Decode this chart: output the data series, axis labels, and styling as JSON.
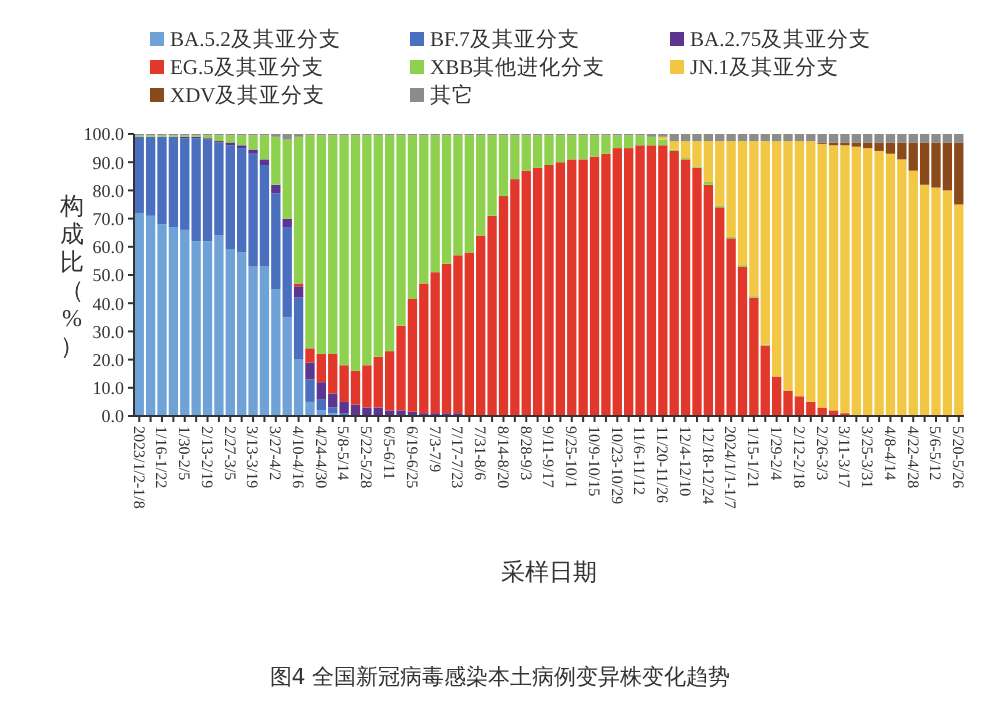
{
  "chart_data": {
    "type": "bar",
    "stacked": true,
    "xlabel": "采样日期",
    "ylabel": "构成比（%）",
    "legend": "top",
    "ylim": [
      0,
      100
    ],
    "yticks": [
      {
        "value": 0,
        "label": "0.0"
      },
      {
        "value": 10,
        "label": "10.0"
      },
      {
        "value": 20,
        "label": "20.0"
      },
      {
        "value": 30,
        "label": "30.0"
      },
      {
        "value": 40,
        "label": "40.0"
      },
      {
        "value": 50,
        "label": "50.0"
      },
      {
        "value": 60,
        "label": "60.0"
      },
      {
        "value": 70,
        "label": "70.0"
      },
      {
        "value": 80,
        "label": "80.0"
      },
      {
        "value": 90,
        "label": "90.0"
      },
      {
        "value": 100,
        "label": "100.0"
      }
    ],
    "categories": [
      "2023/1/2-1/8",
      null,
      "1/16-1/22",
      null,
      "1/30-2/5",
      null,
      "2/13-2/19",
      null,
      "2/27-3/5",
      null,
      "3/13-3/19",
      null,
      "3/27-4/2",
      null,
      "4/10-4/16",
      null,
      "4/24-4/30",
      null,
      "5/8-5/14",
      null,
      "5/22-5/28",
      null,
      "6/5-6/11",
      null,
      "6/19-6/25",
      null,
      "7/3-7/9",
      null,
      "7/17-7/23",
      null,
      "7/31-8/6",
      null,
      "8/14-8/20",
      null,
      "8/28-9/3",
      null,
      "9/11-9/17",
      null,
      "9/25-10/1",
      null,
      "10/9-10/15",
      null,
      "10/23-10/29",
      null,
      "11/6-11/12",
      null,
      "11/20-11/26",
      null,
      "12/4-12/10",
      null,
      "12/18-12/24",
      null,
      "2024/1/1-1/7",
      null,
      "1/15-1/21",
      null,
      "1/29-2/4",
      null,
      "2/12-2/18",
      null,
      "2/26-3/3",
      null,
      "3/11-3/17",
      null,
      "3/25-3/31",
      null,
      "4/8-4/14",
      null,
      "4/22-4/28",
      null,
      "5/6-5/12",
      null,
      "5/20-5/26"
    ],
    "series": [
      {
        "name": "BA.5.2及其亚分支",
        "color": "#6fa3d8",
        "values": [
          72,
          71,
          68,
          67,
          66,
          62,
          62,
          64,
          59,
          58,
          53,
          53,
          45,
          35,
          20,
          5,
          2,
          1,
          0,
          0,
          0,
          0,
          0,
          0,
          0,
          0,
          0,
          0,
          0,
          0,
          0,
          0,
          0,
          0,
          0,
          0,
          0,
          0,
          0,
          0,
          0,
          0,
          0,
          0,
          0,
          0,
          0,
          0,
          0,
          0,
          0,
          0,
          0,
          0,
          0,
          0,
          0,
          0,
          0,
          0,
          0,
          0,
          0,
          0,
          0,
          0,
          0,
          0,
          0,
          0,
          0,
          0,
          0
        ]
      },
      {
        "name": "BF.7及其亚分支",
        "color": "#4a6fbf",
        "values": [
          27,
          28,
          31,
          32,
          32.5,
          36.5,
          36,
          33,
          37,
          37,
          40,
          36,
          34,
          32,
          22,
          8,
          4,
          2,
          1,
          0,
          0,
          0,
          0,
          0,
          0,
          0,
          0,
          0,
          0,
          0,
          0,
          0,
          0,
          0,
          0,
          0,
          0,
          0,
          0,
          0,
          0,
          0,
          0,
          0,
          0,
          0,
          0,
          0,
          0,
          0,
          0,
          0,
          0,
          0,
          0,
          0,
          0,
          0,
          0,
          0,
          0,
          0,
          0,
          0,
          0,
          0,
          0,
          0,
          0,
          0,
          0,
          0,
          0
        ]
      },
      {
        "name": "BA.2.75及其亚分支",
        "color": "#5b3590",
        "values": [
          0,
          0,
          0,
          0,
          0.5,
          0.5,
          0.5,
          0.5,
          1,
          1,
          1.5,
          2,
          3,
          3,
          4,
          6,
          6,
          5,
          4,
          4,
          3,
          3,
          2,
          2,
          1.5,
          1,
          1,
          1,
          1,
          0,
          0,
          0,
          0,
          0,
          0,
          0,
          0,
          0,
          0,
          0,
          0,
          0,
          0,
          0,
          0,
          0,
          0,
          0,
          0,
          0,
          0,
          0,
          0,
          0,
          0,
          0,
          0,
          0,
          0,
          0,
          0,
          0,
          0,
          0,
          0,
          0,
          0,
          0,
          0,
          0,
          0,
          0,
          0
        ]
      },
      {
        "name": "EG.5及其亚分支",
        "color": "#e2382b",
        "values": [
          0,
          0,
          0,
          0,
          0,
          0,
          0,
          0,
          0,
          0,
          0,
          0,
          0,
          0,
          1,
          5,
          10,
          14,
          13,
          12,
          15,
          18,
          21,
          30,
          40,
          46,
          50,
          53,
          56,
          58,
          64,
          71,
          78,
          84,
          87,
          88,
          89,
          90,
          91,
          91,
          92,
          93,
          95,
          95,
          96,
          96,
          96,
          94,
          91,
          88,
          82,
          74,
          63,
          53,
          42,
          25,
          14,
          9,
          7,
          5,
          3,
          2,
          1,
          0,
          0,
          0,
          0,
          0,
          0,
          0,
          0,
          0,
          0
        ]
      },
      {
        "name": "XBB其他进化分支",
        "color": "#8ed14f",
        "values": [
          0.5,
          0.5,
          0.5,
          0.5,
          0.5,
          0.5,
          1,
          2,
          2.5,
          3.5,
          5,
          8.5,
          17,
          28,
          52,
          75.5,
          77.5,
          77.5,
          81.5,
          83.5,
          81.5,
          78.5,
          76.5,
          67.5,
          58,
          52.5,
          48.5,
          45.5,
          42.5,
          41.5,
          35.5,
          28.5,
          21.5,
          15.5,
          12.5,
          11.5,
          10.5,
          9.5,
          8.5,
          8.5,
          7.5,
          6.5,
          4.5,
          4.5,
          3.5,
          3,
          2,
          0.5,
          0.5,
          0.5,
          1,
          0.5,
          0.5,
          0.5,
          0.5,
          0.3,
          0,
          0,
          0,
          0,
          0,
          0,
          0,
          0,
          0,
          0,
          0,
          0,
          0,
          0,
          0,
          0,
          0
        ]
      },
      {
        "name": "JN.1及其亚分支",
        "color": "#f2c744",
        "values": [
          0,
          0,
          0,
          0,
          0,
          0,
          0,
          0,
          0,
          0,
          0,
          0,
          0,
          0,
          0,
          0,
          0,
          0,
          0,
          0,
          0,
          0,
          0,
          0,
          0,
          0,
          0,
          0,
          0,
          0,
          0,
          0,
          0,
          0,
          0,
          0,
          0,
          0,
          0,
          0,
          0,
          0,
          0,
          0,
          0,
          0,
          1,
          3,
          6,
          9,
          14.5,
          23,
          34,
          44,
          55,
          72.2,
          83.5,
          88.5,
          90.5,
          92.5,
          93.5,
          94,
          95,
          95.5,
          95,
          94,
          93,
          91,
          87,
          82,
          81,
          80,
          75
        ]
      },
      {
        "name": "XDV及其亚分支",
        "color": "#8b4a1c",
        "values": [
          0,
          0,
          0,
          0,
          0,
          0,
          0,
          0,
          0,
          0,
          0,
          0,
          0,
          0,
          0,
          0,
          0,
          0,
          0,
          0,
          0,
          0,
          0,
          0,
          0,
          0,
          0,
          0,
          0,
          0,
          0,
          0,
          0,
          0,
          0,
          0,
          0,
          0,
          0,
          0,
          0,
          0,
          0,
          0,
          0,
          0,
          0,
          0,
          0,
          0,
          0,
          0,
          0,
          0,
          0,
          0,
          0,
          0,
          0,
          0,
          0.5,
          1,
          1,
          1.5,
          2,
          3,
          4,
          6,
          10,
          15,
          16,
          17,
          22
        ]
      },
      {
        "name": "其它",
        "color": "#8c8c8c",
        "values": [
          0.5,
          0.5,
          0.5,
          0.5,
          0.5,
          0.5,
          0.5,
          0.5,
          0.5,
          0.5,
          0.5,
          0.5,
          1,
          2,
          1,
          0.5,
          0.5,
          0.5,
          0.5,
          0.5,
          0.5,
          0.5,
          0.5,
          0.5,
          0.5,
          0.5,
          0.5,
          0.5,
          0.5,
          0.5,
          0.5,
          0.5,
          0.5,
          0.5,
          0.5,
          0.5,
          0.5,
          0.5,
          0.5,
          0.5,
          0.5,
          0.5,
          0.5,
          0.5,
          0.5,
          1,
          1,
          2.5,
          2.5,
          2.5,
          2.5,
          2.5,
          2.5,
          2.5,
          2.5,
          2.5,
          2.5,
          2.5,
          2.5,
          2.5,
          3,
          3,
          3,
          3,
          3,
          3,
          3,
          3,
          3,
          3,
          3,
          3,
          3
        ]
      }
    ],
    "annotations": [
      "图4 全国新冠病毒感染本土病例变异株变化趋势"
    ]
  }
}
